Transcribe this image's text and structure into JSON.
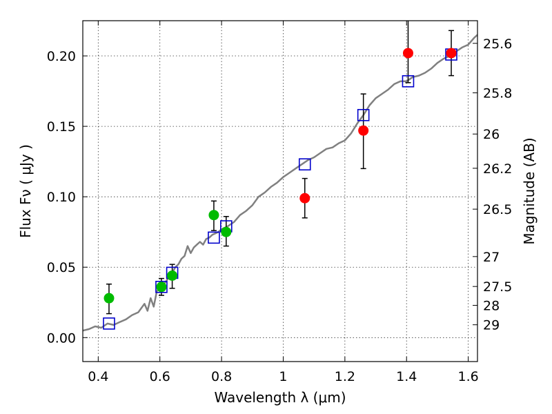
{
  "chart_data": {
    "type": "scatter",
    "xlabel": "Wavelength  λ (μm)",
    "ylabel": "Flux  Fν  ( μJy )",
    "ylabel_right": "Magnitude (AB)",
    "xlim": [
      0.35,
      1.63
    ],
    "ylim": [
      -0.017,
      0.225
    ],
    "grid": true,
    "x_ticks": [
      0.4,
      0.6,
      0.8,
      1.0,
      1.2,
      1.4,
      1.6
    ],
    "x_tick_labels": [
      "0.4",
      "0.6",
      "0.8",
      "1",
      "1.2",
      "1.4",
      "1.6"
    ],
    "y_ticks": [
      0.0,
      0.05,
      0.1,
      0.15,
      0.2
    ],
    "y_tick_labels": [
      "0.00",
      "0.05",
      "0.10",
      "0.15",
      "0.20"
    ],
    "right_ticks": [
      {
        "mag": 25.6,
        "label": "25.6"
      },
      {
        "mag": 25.8,
        "label": "25.8"
      },
      {
        "mag": 26.0,
        "label": "26"
      },
      {
        "mag": 26.2,
        "label": "26.2"
      },
      {
        "mag": 26.5,
        "label": "26.5"
      },
      {
        "mag": 27.0,
        "label": "27"
      },
      {
        "mag": 27.5,
        "label": "27.5"
      },
      {
        "mag": 28.0,
        "label": "28"
      },
      {
        "mag": 29.0,
        "label": "29"
      }
    ],
    "series": [
      {
        "name": "model_spectrum",
        "kind": "line",
        "color": "#808080",
        "points": [
          [
            0.35,
            0.005
          ],
          [
            0.37,
            0.006
          ],
          [
            0.39,
            0.008
          ],
          [
            0.41,
            0.007
          ],
          [
            0.43,
            0.01
          ],
          [
            0.45,
            0.009
          ],
          [
            0.47,
            0.011
          ],
          [
            0.49,
            0.013
          ],
          [
            0.51,
            0.016
          ],
          [
            0.53,
            0.018
          ],
          [
            0.55,
            0.024
          ],
          [
            0.56,
            0.019
          ],
          [
            0.57,
            0.028
          ],
          [
            0.58,
            0.022
          ],
          [
            0.59,
            0.033
          ],
          [
            0.6,
            0.035
          ],
          [
            0.61,
            0.037
          ],
          [
            0.62,
            0.04
          ],
          [
            0.63,
            0.043
          ],
          [
            0.64,
            0.046
          ],
          [
            0.65,
            0.05
          ],
          [
            0.66,
            0.052
          ],
          [
            0.67,
            0.056
          ],
          [
            0.68,
            0.058
          ],
          [
            0.69,
            0.065
          ],
          [
            0.7,
            0.06
          ],
          [
            0.71,
            0.064
          ],
          [
            0.72,
            0.066
          ],
          [
            0.73,
            0.068
          ],
          [
            0.74,
            0.066
          ],
          [
            0.75,
            0.07
          ],
          [
            0.76,
            0.071
          ],
          [
            0.77,
            0.073
          ],
          [
            0.78,
            0.074
          ],
          [
            0.79,
            0.075
          ],
          [
            0.8,
            0.077
          ],
          [
            0.82,
            0.079
          ],
          [
            0.84,
            0.082
          ],
          [
            0.86,
            0.087
          ],
          [
            0.88,
            0.09
          ],
          [
            0.9,
            0.094
          ],
          [
            0.92,
            0.1
          ],
          [
            0.94,
            0.103
          ],
          [
            0.96,
            0.107
          ],
          [
            0.98,
            0.11
          ],
          [
            1.0,
            0.114
          ],
          [
            1.02,
            0.117
          ],
          [
            1.04,
            0.12
          ],
          [
            1.06,
            0.123
          ],
          [
            1.08,
            0.126
          ],
          [
            1.1,
            0.128
          ],
          [
            1.12,
            0.131
          ],
          [
            1.14,
            0.134
          ],
          [
            1.16,
            0.135
          ],
          [
            1.18,
            0.138
          ],
          [
            1.2,
            0.14
          ],
          [
            1.22,
            0.145
          ],
          [
            1.24,
            0.152
          ],
          [
            1.26,
            0.158
          ],
          [
            1.28,
            0.165
          ],
          [
            1.3,
            0.17
          ],
          [
            1.32,
            0.173
          ],
          [
            1.34,
            0.176
          ],
          [
            1.36,
            0.18
          ],
          [
            1.38,
            0.182
          ],
          [
            1.4,
            0.182
          ],
          [
            1.42,
            0.185
          ],
          [
            1.44,
            0.186
          ],
          [
            1.46,
            0.188
          ],
          [
            1.48,
            0.191
          ],
          [
            1.5,
            0.195
          ],
          [
            1.52,
            0.198
          ],
          [
            1.54,
            0.2
          ],
          [
            1.56,
            0.203
          ],
          [
            1.58,
            0.206
          ],
          [
            1.6,
            0.208
          ],
          [
            1.62,
            0.213
          ],
          [
            1.63,
            0.215
          ]
        ]
      },
      {
        "name": "model_photometry",
        "kind": "open_square",
        "color": "#0000cc",
        "points": [
          [
            0.435,
            0.01
          ],
          [
            0.605,
            0.036
          ],
          [
            0.64,
            0.046
          ],
          [
            0.775,
            0.071
          ],
          [
            0.815,
            0.079
          ],
          [
            1.07,
            0.123
          ],
          [
            1.26,
            0.158
          ],
          [
            1.405,
            0.182
          ],
          [
            1.545,
            0.201
          ]
        ]
      },
      {
        "name": "observed_green",
        "kind": "filled_circle",
        "color": "#00bb00",
        "points": [
          {
            "x": 0.435,
            "y": 0.028,
            "lo": 0.017,
            "hi": 0.038
          },
          {
            "x": 0.605,
            "y": 0.036,
            "lo": 0.03,
            "hi": 0.042
          },
          {
            "x": 0.64,
            "y": 0.044,
            "lo": 0.035,
            "hi": 0.052
          },
          {
            "x": 0.775,
            "y": 0.087,
            "lo": 0.076,
            "hi": 0.097
          },
          {
            "x": 0.815,
            "y": 0.075,
            "lo": 0.065,
            "hi": 0.086
          }
        ]
      },
      {
        "name": "observed_red",
        "kind": "filled_circle",
        "color": "#ff0000",
        "points": [
          {
            "x": 1.07,
            "y": 0.099,
            "lo": 0.085,
            "hi": 0.113
          },
          {
            "x": 1.26,
            "y": 0.147,
            "lo": 0.12,
            "hi": 0.173
          },
          {
            "x": 1.405,
            "y": 0.202,
            "lo": 0.181,
            "hi": 0.226
          },
          {
            "x": 1.545,
            "y": 0.202,
            "lo": 0.186,
            "hi": 0.218
          }
        ]
      }
    ]
  }
}
